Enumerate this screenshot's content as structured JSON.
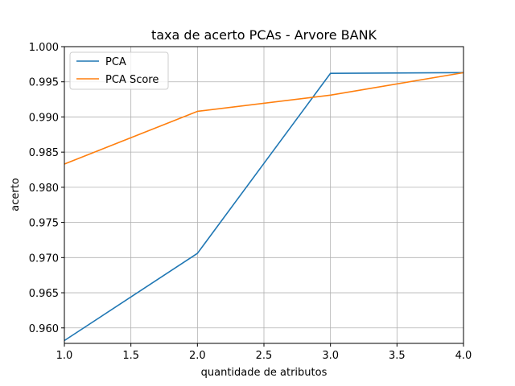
{
  "chart_data": {
    "type": "line",
    "title": "taxa de acerto PCAs - Arvore BANK",
    "xlabel": "quantidade de atributos",
    "ylabel": "acerto",
    "x": [
      1,
      2,
      3,
      4
    ],
    "series": [
      {
        "name": "PCA",
        "values": [
          0.9582,
          0.9706,
          0.9962,
          0.9963
        ],
        "color": "#1f77b4"
      },
      {
        "name": "PCA Score",
        "values": [
          0.9833,
          0.9908,
          0.9931,
          0.9963
        ],
        "color": "#ff7f0e"
      }
    ],
    "xlim": [
      1.0,
      4.0
    ],
    "ylim": [
      0.9578,
      1.0
    ],
    "xticks": [
      1.0,
      1.5,
      2.0,
      2.5,
      3.0,
      3.5,
      4.0
    ],
    "xtick_labels": [
      "1.0",
      "1.5",
      "2.0",
      "2.5",
      "3.0",
      "3.5",
      "4.0"
    ],
    "yticks": [
      0.96,
      0.965,
      0.97,
      0.975,
      0.98,
      0.985,
      0.99,
      0.995,
      1.0
    ],
    "ytick_labels": [
      "0.960",
      "0.965",
      "0.970",
      "0.975",
      "0.980",
      "0.985",
      "0.990",
      "0.995",
      "1.000"
    ],
    "grid": true,
    "legend_position": "top-left"
  }
}
